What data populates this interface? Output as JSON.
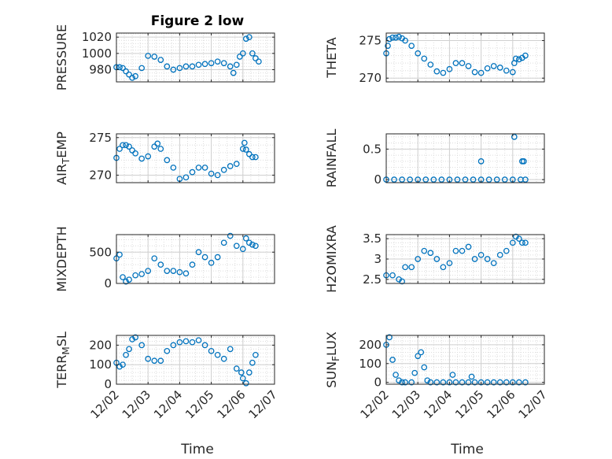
{
  "figure_title": "Figure 2 low",
  "xlabel": "Time",
  "xticks": [
    "12/02",
    "12/03",
    "12/04",
    "12/05",
    "12/06",
    "12/07"
  ],
  "marker_color": "#0072BD",
  "chart_data": [
    {
      "type": "scatter",
      "title": "Figure 2 low",
      "ylabel": "PRESSURE",
      "ylim": [
        965,
        1025
      ],
      "yticks": [
        980,
        1000,
        1020
      ],
      "xlim": [
        0,
        5
      ],
      "grid": true,
      "x": [
        0.0,
        0.1,
        0.2,
        0.3,
        0.4,
        0.5,
        0.6,
        0.8,
        1.0,
        1.2,
        1.4,
        1.6,
        1.8,
        2.0,
        2.2,
        2.4,
        2.6,
        2.8,
        3.0,
        3.2,
        3.4,
        3.6,
        3.7,
        3.8,
        3.9,
        4.0,
        4.1,
        4.2,
        4.3,
        4.4,
        4.5
      ],
      "y": [
        983,
        983,
        982,
        978,
        974,
        970,
        972,
        982,
        997,
        996,
        992,
        984,
        980,
        982,
        984,
        984,
        986,
        987,
        988,
        990,
        988,
        984,
        976,
        986,
        996,
        1000,
        1018,
        1020,
        1000,
        994,
        990
      ],
      "series_label": "PRESSURE"
    },
    {
      "type": "scatter",
      "ylabel": "THETA",
      "ylim": [
        269.5,
        276
      ],
      "yticks": [
        270,
        275
      ],
      "xlim": [
        0,
        5
      ],
      "grid": true,
      "x": [
        0.0,
        0.05,
        0.1,
        0.2,
        0.3,
        0.4,
        0.5,
        0.6,
        0.8,
        1.0,
        1.2,
        1.4,
        1.6,
        1.8,
        2.0,
        2.2,
        2.4,
        2.6,
        2.8,
        3.0,
        3.2,
        3.4,
        3.6,
        3.8,
        4.0,
        4.05,
        4.1,
        4.2,
        4.3,
        4.4
      ],
      "y": [
        273.3,
        274.3,
        275.2,
        275.4,
        275.4,
        275.5,
        275.3,
        275.0,
        274.3,
        273.3,
        272.6,
        271.8,
        270.9,
        270.7,
        271.2,
        272.0,
        272.0,
        271.6,
        270.8,
        270.7,
        271.3,
        271.6,
        271.4,
        271.0,
        270.8,
        272.0,
        272.6,
        272.5,
        272.7,
        273.0
      ],
      "series_label": "THETA"
    },
    {
      "type": "scatter",
      "ylabel": "AIR_TEMP",
      "ylim": [
        269,
        275.5
      ],
      "yticks": [
        270,
        275
      ],
      "xlim": [
        0,
        5
      ],
      "grid": true,
      "x": [
        0.0,
        0.1,
        0.2,
        0.3,
        0.4,
        0.5,
        0.6,
        0.8,
        1.0,
        1.2,
        1.3,
        1.4,
        1.6,
        1.8,
        2.0,
        2.2,
        2.4,
        2.6,
        2.8,
        3.0,
        3.2,
        3.4,
        3.6,
        3.8,
        4.0,
        4.05,
        4.1,
        4.2,
        4.3,
        4.4
      ],
      "y": [
        272.3,
        273.5,
        274.0,
        274.0,
        273.8,
        273.3,
        272.9,
        272.2,
        272.5,
        273.8,
        274.2,
        273.5,
        272.0,
        271.0,
        269.5,
        269.7,
        270.4,
        271.0,
        271.0,
        270.2,
        270.0,
        270.7,
        271.2,
        271.5,
        273.5,
        274.3,
        273.4,
        272.8,
        272.4,
        272.4
      ],
      "series_label": "AIR_TEMP"
    },
    {
      "type": "scatter",
      "ylabel": "RAINFALL",
      "ylim": [
        -0.05,
        0.75
      ],
      "yticks": [
        0,
        0.5
      ],
      "xlim": [
        0,
        5
      ],
      "grid": true,
      "x": [
        0.0,
        0.25,
        0.5,
        0.75,
        1.0,
        1.25,
        1.5,
        1.75,
        2.0,
        2.25,
        2.5,
        2.75,
        3.0,
        3.25,
        3.5,
        3.75,
        4.0,
        4.25,
        4.4,
        3.0,
        4.05,
        4.3,
        4.35
      ],
      "y": [
        0,
        0,
        0,
        0,
        0,
        0,
        0,
        0,
        0,
        0,
        0,
        0,
        0,
        0,
        0,
        0,
        0,
        0,
        0,
        0.3,
        0.7,
        0.3,
        0.3
      ],
      "series_label": "RAINFALL"
    },
    {
      "type": "scatter",
      "ylabel": "MIXDEPTH",
      "ylim": [
        0,
        780
      ],
      "yticks": [
        0,
        500
      ],
      "xlim": [
        0,
        5
      ],
      "grid": true,
      "x": [
        0.0,
        0.1,
        0.2,
        0.3,
        0.4,
        0.6,
        0.8,
        1.0,
        1.2,
        1.4,
        1.6,
        1.8,
        2.0,
        2.2,
        2.4,
        2.6,
        2.8,
        3.0,
        3.2,
        3.4,
        3.6,
        3.8,
        4.0,
        4.1,
        4.2,
        4.3,
        4.4
      ],
      "y": [
        400,
        460,
        100,
        30,
        60,
        130,
        150,
        200,
        400,
        300,
        200,
        200,
        180,
        160,
        300,
        500,
        420,
        330,
        420,
        650,
        760,
        600,
        550,
        720,
        650,
        620,
        600
      ],
      "series_label": "MIXDEPTH"
    },
    {
      "type": "scatter",
      "ylabel": "H2OMIXRA",
      "ylim": [
        2.4,
        3.6
      ],
      "yticks": [
        2.5,
        3,
        3.5
      ],
      "xlim": [
        0,
        5
      ],
      "grid": true,
      "x": [
        0.0,
        0.2,
        0.4,
        0.5,
        0.6,
        0.8,
        1.0,
        1.2,
        1.4,
        1.6,
        1.8,
        2.0,
        2.2,
        2.4,
        2.6,
        2.8,
        3.0,
        3.2,
        3.4,
        3.6,
        3.8,
        4.0,
        4.1,
        4.2,
        4.3,
        4.4
      ],
      "y": [
        2.6,
        2.6,
        2.5,
        2.45,
        2.8,
        2.8,
        3.0,
        3.2,
        3.15,
        3.0,
        2.8,
        2.9,
        3.2,
        3.2,
        3.3,
        3.0,
        3.1,
        3.0,
        2.9,
        3.1,
        3.2,
        3.4,
        3.55,
        3.5,
        3.4,
        3.4
      ],
      "series_label": "H2OMIXRA"
    },
    {
      "type": "scatter",
      "ylabel": "TERR_MSL",
      "ylim": [
        0,
        250
      ],
      "yticks": [
        0,
        100,
        200
      ],
      "xlim": [
        0,
        5
      ],
      "grid": true,
      "x": [
        0.0,
        0.1,
        0.2,
        0.3,
        0.4,
        0.5,
        0.6,
        0.8,
        1.0,
        1.2,
        1.4,
        1.6,
        1.8,
        2.0,
        2.2,
        2.4,
        2.6,
        2.8,
        3.0,
        3.2,
        3.4,
        3.6,
        3.8,
        3.95,
        4.0,
        4.1,
        4.2,
        4.3,
        4.4
      ],
      "y": [
        110,
        90,
        100,
        150,
        180,
        230,
        240,
        200,
        130,
        120,
        120,
        170,
        200,
        215,
        220,
        215,
        225,
        200,
        170,
        150,
        130,
        180,
        80,
        60,
        30,
        5,
        60,
        110,
        150
      ],
      "series_label": "TERR_MSL"
    },
    {
      "type": "scatter",
      "ylabel": "SUN_FLUX",
      "ylim": [
        -10,
        250
      ],
      "yticks": [
        0,
        100,
        200
      ],
      "xlim": [
        0,
        5
      ],
      "grid": true,
      "x": [
        0.0,
        0.1,
        0.2,
        0.3,
        0.4,
        0.5,
        0.6,
        0.8,
        0.9,
        1.0,
        1.1,
        1.2,
        1.3,
        1.4,
        1.6,
        1.8,
        2.0,
        2.1,
        2.2,
        2.4,
        2.6,
        2.7,
        2.8,
        3.0,
        3.2,
        3.4,
        3.6,
        3.8,
        4.0,
        4.2,
        4.4
      ],
      "y": [
        200,
        240,
        120,
        40,
        10,
        0,
        0,
        0,
        50,
        140,
        160,
        80,
        10,
        0,
        0,
        0,
        0,
        40,
        0,
        0,
        0,
        30,
        0,
        0,
        0,
        0,
        0,
        0,
        0,
        0,
        0
      ],
      "series_label": "SUN_FLUX"
    }
  ]
}
